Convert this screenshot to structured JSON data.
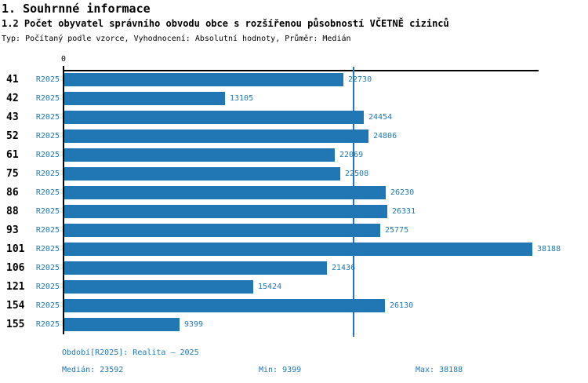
{
  "header": {
    "title": "1. Souhrnné informace",
    "subtitle": "1.2 Počet obyvatel správního obvodu obce s rozšířenou působností VČETNĚ cizinců",
    "meta": "Typ: Počítaný podle vzorce, Vyhodnocení: Absolutní hodnoty, Průměr: Medián"
  },
  "chart_data": {
    "type": "bar",
    "orientation": "horizontal",
    "title": "1.2 Počet obyvatel správního obvodu obce s rozšířenou působností VČETNĚ cizinců",
    "categories": [
      "41",
      "42",
      "43",
      "52",
      "61",
      "75",
      "86",
      "88",
      "93",
      "101",
      "106",
      "121",
      "154",
      "155"
    ],
    "series": [
      {
        "name": "R2025",
        "values": [
          22730,
          13105,
          24454,
          24806,
          22069,
          22508,
          26230,
          26331,
          25775,
          38188,
          21436,
          15424,
          26130,
          9399
        ]
      }
    ],
    "axis": {
      "origin_label": "0",
      "xlim": [
        0,
        38800
      ],
      "gridlines": false
    },
    "median_value": 23592,
    "min_value": 9399,
    "max_value": 38188,
    "legend": "none",
    "colors": {
      "bar": "#2077b4",
      "value_label": "#1f77b4",
      "series_label": "#1f77b4",
      "category_label": "#000000",
      "median_line": "#1f77b4",
      "axis": "#000000"
    }
  },
  "footer": {
    "period": "Období[R2025]: Realita – 2025",
    "median": "Medián: 23592",
    "min": "Min: 9399",
    "max": "Max: 38188"
  }
}
